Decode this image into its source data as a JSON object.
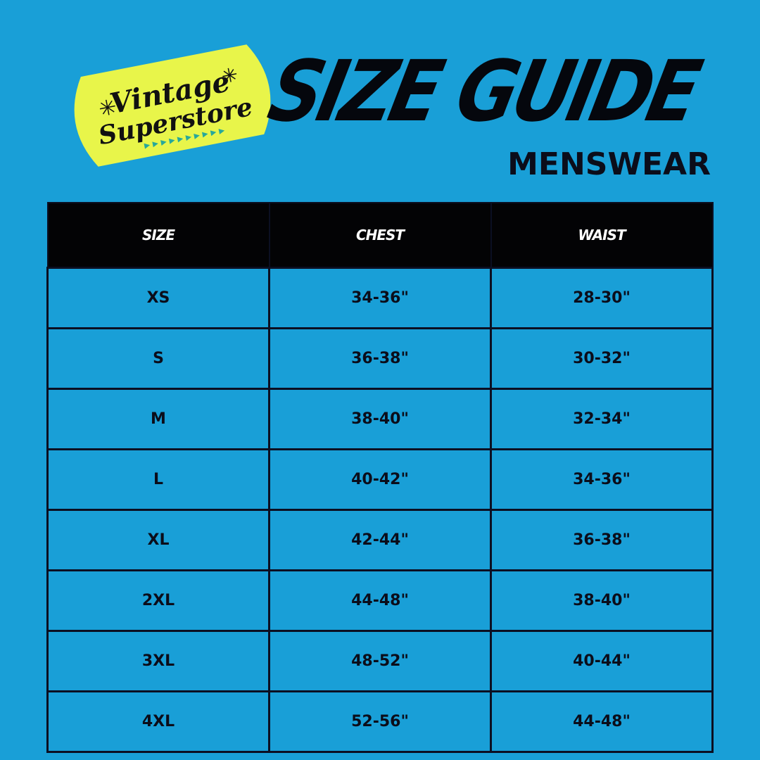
{
  "logo": {
    "line1": "Vintage",
    "line2": "Superstore",
    "color": "#e8f54a",
    "accent": "#27a89a"
  },
  "header": {
    "title": "SIZE GUIDE",
    "subtitle": "MENSWEAR"
  },
  "table": {
    "columns": [
      "SIZE",
      "CHEST",
      "WAIST"
    ],
    "rows": [
      [
        "XS",
        "34-36\"",
        "28-30\""
      ],
      [
        "S",
        "36-38\"",
        "30-32\""
      ],
      [
        "M",
        "38-40\"",
        "32-34\""
      ],
      [
        "L",
        "40-42\"",
        "34-36\""
      ],
      [
        "XL",
        "42-44\"",
        "36-38\""
      ],
      [
        "2XL",
        "44-48\"",
        "38-40\""
      ],
      [
        "3XL",
        "48-52\"",
        "40-44\""
      ],
      [
        "4XL",
        "52-56\"",
        "44-48\""
      ]
    ]
  },
  "colors": {
    "background": "#199fd7",
    "header_bg": "#030305",
    "text": "#0b0d1a"
  }
}
